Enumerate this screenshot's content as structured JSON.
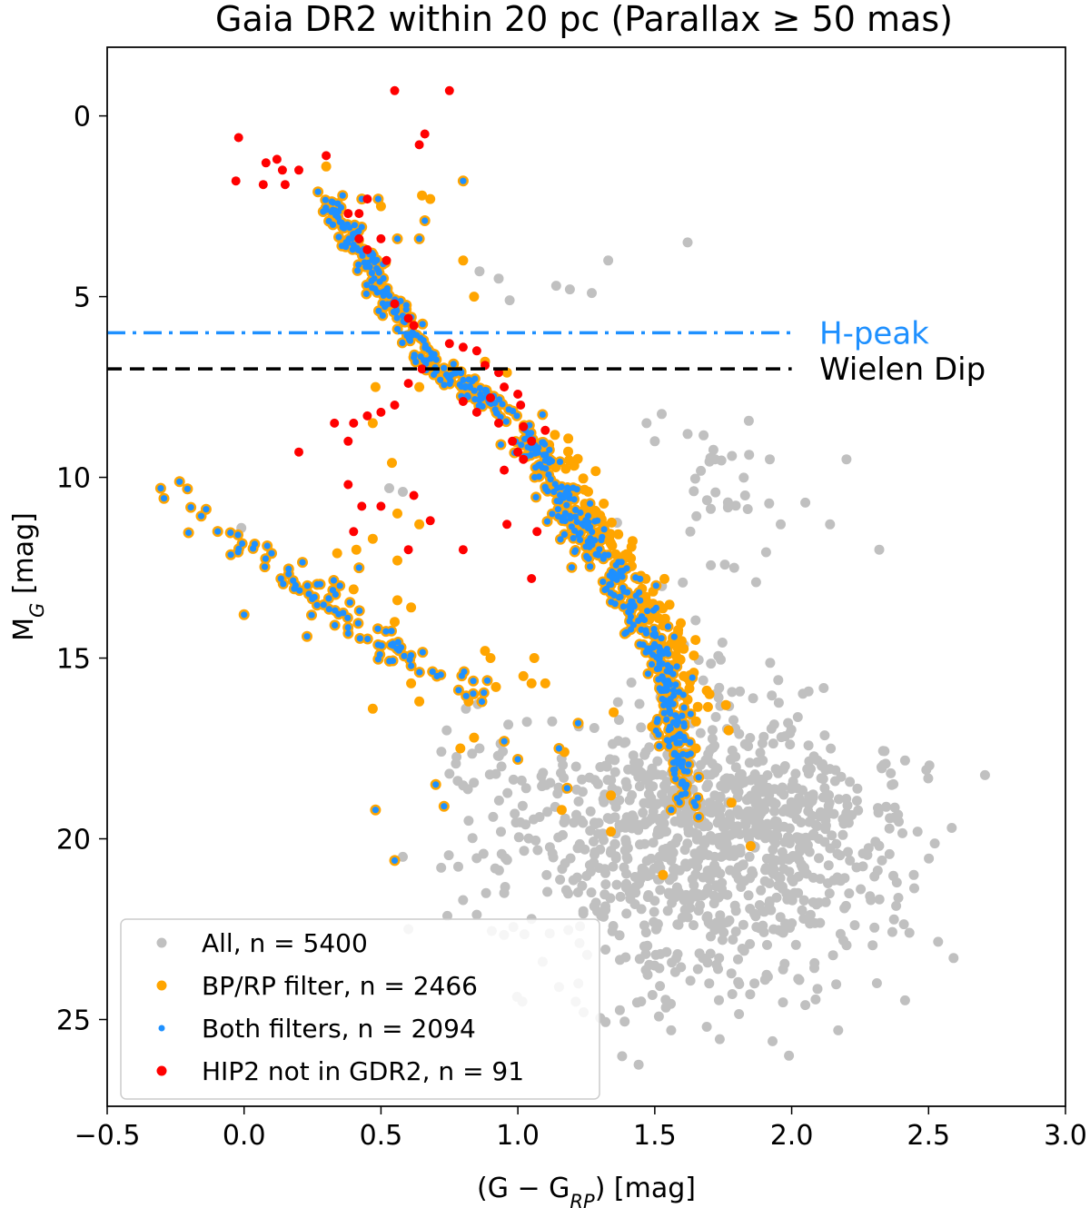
{
  "chart_data": {
    "type": "scatter",
    "title": "Gaia DR2 within 20 pc (Parallax ≥ 50 mas)",
    "xlabel": "(G − G_RP) [mag]",
    "ylabel": "M_G [mag]",
    "xlim": [
      -0.5,
      3.0
    ],
    "ylim": [
      27.4,
      -1.9
    ],
    "y_inverted": true,
    "grid": false,
    "legend_position": "lower-left",
    "x_ticks": [
      -0.5,
      0.0,
      0.5,
      1.0,
      1.5,
      2.0,
      2.5,
      3.0
    ],
    "x_tick_labels": [
      "−0.5",
      "0.0",
      "0.5",
      "1.0",
      "1.5",
      "2.0",
      "2.5",
      "3.0"
    ],
    "y_ticks": [
      0,
      5,
      10,
      15,
      20,
      25
    ],
    "y_tick_labels": [
      "0",
      "5",
      "10",
      "15",
      "20",
      "25"
    ],
    "colors": {
      "all": "#c0c0c0",
      "bprp": "#ffa500",
      "both": "#1e90ff",
      "hip2": "#ff0000",
      "hpeak_line": "#1e90ff",
      "wielen_line": "#000000"
    },
    "reference_lines": [
      {
        "name": "H-peak",
        "y": 6.0,
        "style": "dashdot",
        "color": "#1e90ff",
        "label": "H-peak"
      },
      {
        "name": "Wielen Dip",
        "y": 7.0,
        "style": "dashed",
        "color": "#000000",
        "label": "Wielen Dip"
      }
    ],
    "series": [
      {
        "name": "All, n = 5400",
        "color": "#c0c0c0",
        "points": [
          [
            1.62,
            3.5
          ],
          [
            1.33,
            4.0
          ],
          [
            0.86,
            4.3
          ],
          [
            0.93,
            4.5
          ],
          [
            1.14,
            4.7
          ],
          [
            1.19,
            4.8
          ],
          [
            0.97,
            5.1
          ],
          [
            1.27,
            4.9
          ],
          [
            1.92,
            9.5
          ],
          [
            2.2,
            9.5
          ],
          [
            1.47,
            8.5
          ],
          [
            1.5,
            9.0
          ],
          [
            1.62,
            8.8
          ],
          [
            1.72,
            9.5
          ],
          [
            1.83,
            10.5
          ],
          [
            1.96,
            11.3
          ],
          [
            2.05,
            10.7
          ],
          [
            2.14,
            11.3
          ],
          [
            2.32,
            12.0
          ],
          [
            1.79,
            12.5
          ],
          [
            1.87,
            12.9
          ],
          [
            1.63,
            11.5
          ],
          [
            0.53,
            10.3
          ],
          [
            0.58,
            10.4
          ],
          [
            -0.01,
            11.4
          ],
          [
            0.81,
            16.4
          ],
          [
            0.74,
            17.0
          ],
          [
            0.86,
            17.5
          ],
          [
            0.94,
            18.0
          ],
          [
            1.03,
            18.6
          ],
          [
            0.75,
            18.2
          ],
          [
            0.82,
            19.5
          ],
          [
            0.58,
            20.5
          ],
          [
            0.72,
            20.8
          ],
          [
            0.95,
            21.5
          ],
          [
            0.6,
            22.5
          ],
          [
            0.85,
            22.1
          ],
          [
            1.24,
            24.8
          ],
          [
            1.56,
            25.3
          ],
          [
            1.99,
            26.0
          ],
          [
            2.17,
            25.3
          ],
          [
            2.43,
            22.6
          ],
          [
            2.33,
            20.6
          ],
          [
            2.46,
            19.8
          ],
          [
            1.69,
            25.2
          ],
          [
            1.93,
            25.6
          ],
          [
            1.45,
            24.5
          ],
          [
            1.15,
            24.1
          ],
          [
            2.05,
            24.6
          ]
        ],
        "clusters": [
          {
            "cx": 1.72,
            "cy": 19.5,
            "sx": 0.28,
            "sy": 1.55,
            "n": 620
          },
          {
            "cx": 1.95,
            "cy": 21.0,
            "sx": 0.25,
            "sy": 1.7,
            "n": 220
          },
          {
            "cx": 1.35,
            "cy": 20.5,
            "sx": 0.24,
            "sy": 1.6,
            "n": 130
          },
          {
            "cx": 1.55,
            "cy": 23.2,
            "sx": 0.28,
            "sy": 1.2,
            "n": 60
          },
          {
            "cx": 1.7,
            "cy": 11.0,
            "sx": 0.15,
            "sy": 1.3,
            "n": 30
          },
          {
            "cx": 1.72,
            "cy": 14.8,
            "sx": 0.08,
            "sy": 0.6,
            "n": 8
          },
          {
            "cx": 0.9,
            "cy": 18.0,
            "sx": 0.12,
            "sy": 1.1,
            "n": 25
          }
        ]
      },
      {
        "name": "BP/RP filter, n = 2466",
        "color": "#ffa500",
        "points": [
          [
            0.3,
            1.4
          ],
          [
            0.5,
            2.5
          ],
          [
            0.65,
            2.2
          ],
          [
            0.68,
            2.3
          ],
          [
            0.8,
            4.0
          ],
          [
            0.84,
            5.0
          ],
          [
            0.48,
            7.5
          ],
          [
            0.64,
            7.5
          ],
          [
            0.88,
            6.8
          ],
          [
            0.96,
            7.1
          ],
          [
            0.47,
            8.5
          ],
          [
            0.54,
            9.6
          ],
          [
            0.41,
            12.0
          ],
          [
            0.47,
            11.7
          ],
          [
            0.56,
            11.0
          ],
          [
            0.64,
            11.3
          ],
          [
            0.56,
            12.3
          ],
          [
            0.34,
            12.1
          ],
          [
            0.4,
            13.1
          ],
          [
            0.56,
            13.4
          ],
          [
            0.61,
            13.6
          ],
          [
            0.55,
            14.0
          ],
          [
            0.88,
            14.8
          ],
          [
            0.9,
            15.0
          ],
          [
            0.92,
            15.8
          ],
          [
            1.02,
            15.5
          ],
          [
            1.06,
            15.0
          ],
          [
            0.84,
            16.0
          ],
          [
            0.82,
            16.2
          ],
          [
            0.84,
            17.2
          ],
          [
            0.79,
            17.5
          ],
          [
            0.64,
            16.2
          ],
          [
            0.61,
            15.7
          ],
          [
            0.47,
            16.4
          ],
          [
            0.38,
            14.2
          ],
          [
            1.05,
            15.7
          ],
          [
            1.1,
            15.7
          ],
          [
            1.35,
            16.5
          ],
          [
            1.49,
            16.9
          ],
          [
            1.69,
            15.9
          ],
          [
            1.76,
            16.3
          ],
          [
            1.77,
            17.0
          ],
          [
            1.65,
            17.5
          ],
          [
            1.17,
            17.6
          ],
          [
            1.34,
            18.8
          ],
          [
            1.16,
            19.2
          ],
          [
            1.34,
            19.8
          ],
          [
            1.53,
            21.0
          ],
          [
            1.78,
            19.0
          ],
          [
            1.85,
            20.2
          ],
          [
            1.7,
            16.0
          ],
          [
            1.63,
            15.5
          ]
        ]
      },
      {
        "name": "Both filters, n = 2094",
        "color": "#1e90ff",
        "edgecolor": "#d9a54a",
        "main_sequence": [
          [
            0.3,
            2.4
          ],
          [
            0.36,
            3.0
          ],
          [
            0.45,
            4.0
          ],
          [
            0.52,
            5.0
          ],
          [
            0.6,
            6.0
          ],
          [
            0.72,
            7.0
          ],
          [
            0.85,
            7.6
          ],
          [
            0.95,
            8.2
          ],
          [
            1.05,
            9.0
          ],
          [
            1.12,
            10.0
          ],
          [
            1.2,
            11.0
          ],
          [
            1.28,
            12.0
          ],
          [
            1.37,
            13.0
          ],
          [
            1.45,
            14.0
          ],
          [
            1.52,
            15.0
          ],
          [
            1.56,
            16.0
          ],
          [
            1.58,
            17.0
          ],
          [
            1.59,
            18.0
          ],
          [
            1.62,
            19.0
          ]
        ],
        "white_dwarfs": [
          [
            -0.25,
            10.4
          ],
          [
            -0.2,
            10.8
          ],
          [
            -0.12,
            11.3
          ],
          [
            -0.05,
            11.6
          ],
          [
            0.02,
            11.9
          ],
          [
            0.08,
            12.2
          ],
          [
            0.15,
            12.6
          ],
          [
            0.2,
            13.0
          ],
          [
            0.25,
            13.3
          ],
          [
            0.3,
            13.6
          ],
          [
            0.38,
            13.9
          ],
          [
            0.45,
            14.2
          ],
          [
            0.52,
            14.6
          ],
          [
            0.58,
            14.9
          ],
          [
            0.64,
            15.2
          ],
          [
            0.72,
            15.4
          ],
          [
            0.8,
            15.6
          ],
          [
            0.86,
            15.9
          ]
        ],
        "points": [
          [
            0.27,
            2.1
          ],
          [
            0.3,
            2.6
          ],
          [
            0.36,
            2.2
          ],
          [
            0.43,
            2.3
          ],
          [
            0.49,
            2.3
          ],
          [
            0.66,
            2.9
          ],
          [
            0.56,
            3.4
          ],
          [
            0.64,
            3.4
          ],
          [
            0.8,
            1.8
          ],
          [
            0.48,
            19.2
          ],
          [
            0.55,
            20.6
          ],
          [
            0.73,
            19.1
          ],
          [
            0.7,
            18.5
          ],
          [
            1.15,
            17.5
          ],
          [
            1.18,
            18.6
          ],
          [
            1.22,
            16.8
          ],
          [
            1.0,
            17.8
          ],
          [
            0.95,
            17.3
          ],
          [
            1.66,
            19.4
          ],
          [
            1.56,
            19.2
          ],
          [
            0.0,
            13.8
          ],
          [
            0.23,
            14.4
          ],
          [
            0.35,
            13.0
          ],
          [
            0.42,
            12.5
          ]
        ]
      },
      {
        "name": "HIP2 not in GDR2, n = 91",
        "color": "#ff0000",
        "points": [
          [
            0.55,
            -0.7
          ],
          [
            0.75,
            -0.7
          ],
          [
            0.66,
            0.5
          ],
          [
            0.64,
            0.8
          ],
          [
            -0.02,
            0.6
          ],
          [
            -0.03,
            1.8
          ],
          [
            0.08,
            1.3
          ],
          [
            0.12,
            1.2
          ],
          [
            0.14,
            1.5
          ],
          [
            0.2,
            1.5
          ],
          [
            0.3,
            1.1
          ],
          [
            0.15,
            1.9
          ],
          [
            0.07,
            1.9
          ],
          [
            0.38,
            2.7
          ],
          [
            0.42,
            2.7
          ],
          [
            0.45,
            2.3
          ],
          [
            0.42,
            3.4
          ],
          [
            0.45,
            3.7
          ],
          [
            0.5,
            3.4
          ],
          [
            0.52,
            4.0
          ],
          [
            0.55,
            5.2
          ],
          [
            0.6,
            5.6
          ],
          [
            0.62,
            5.8
          ],
          [
            0.75,
            6.3
          ],
          [
            0.8,
            6.4
          ],
          [
            0.85,
            6.5
          ],
          [
            0.88,
            6.9
          ],
          [
            0.93,
            7.1
          ],
          [
            0.95,
            7.5
          ],
          [
            1.0,
            7.7
          ],
          [
            0.8,
            7.9
          ],
          [
            0.85,
            8.2
          ],
          [
            0.93,
            8.5
          ],
          [
            1.01,
            8.0
          ],
          [
            1.05,
            9.0
          ],
          [
            1.02,
            9.5
          ],
          [
            0.98,
            9.0
          ],
          [
            0.95,
            9.8
          ],
          [
            1.1,
            8.7
          ],
          [
            1.07,
            11.5
          ],
          [
            1.05,
            12.8
          ],
          [
            0.96,
            11.3
          ],
          [
            0.8,
            12.0
          ],
          [
            0.68,
            11.2
          ],
          [
            0.6,
            12.0
          ],
          [
            0.5,
            10.8
          ],
          [
            0.43,
            10.8
          ],
          [
            0.4,
            11.5
          ],
          [
            0.38,
            10.2
          ],
          [
            0.38,
            9.0
          ],
          [
            0.4,
            8.5
          ],
          [
            0.45,
            8.3
          ],
          [
            0.5,
            8.2
          ],
          [
            0.33,
            8.5
          ],
          [
            0.2,
            9.3
          ],
          [
            0.55,
            8.0
          ],
          [
            0.6,
            7.4
          ],
          [
            0.65,
            7.0
          ],
          [
            1.0,
            9.3
          ],
          [
            0.9,
            7.8
          ],
          [
            1.02,
            8.6
          ],
          [
            0.62,
            10.5
          ]
        ]
      }
    ],
    "legend": [
      {
        "label": "All, n = 5400",
        "color": "#c0c0c0"
      },
      {
        "label": "BP/RP filter, n = 2466",
        "color": "#ffa500"
      },
      {
        "label": "Both filters, n = 2094",
        "color": "#1e90ff"
      },
      {
        "label": "HIP2 not in GDR2, n = 91",
        "color": "#ff0000"
      }
    ]
  }
}
